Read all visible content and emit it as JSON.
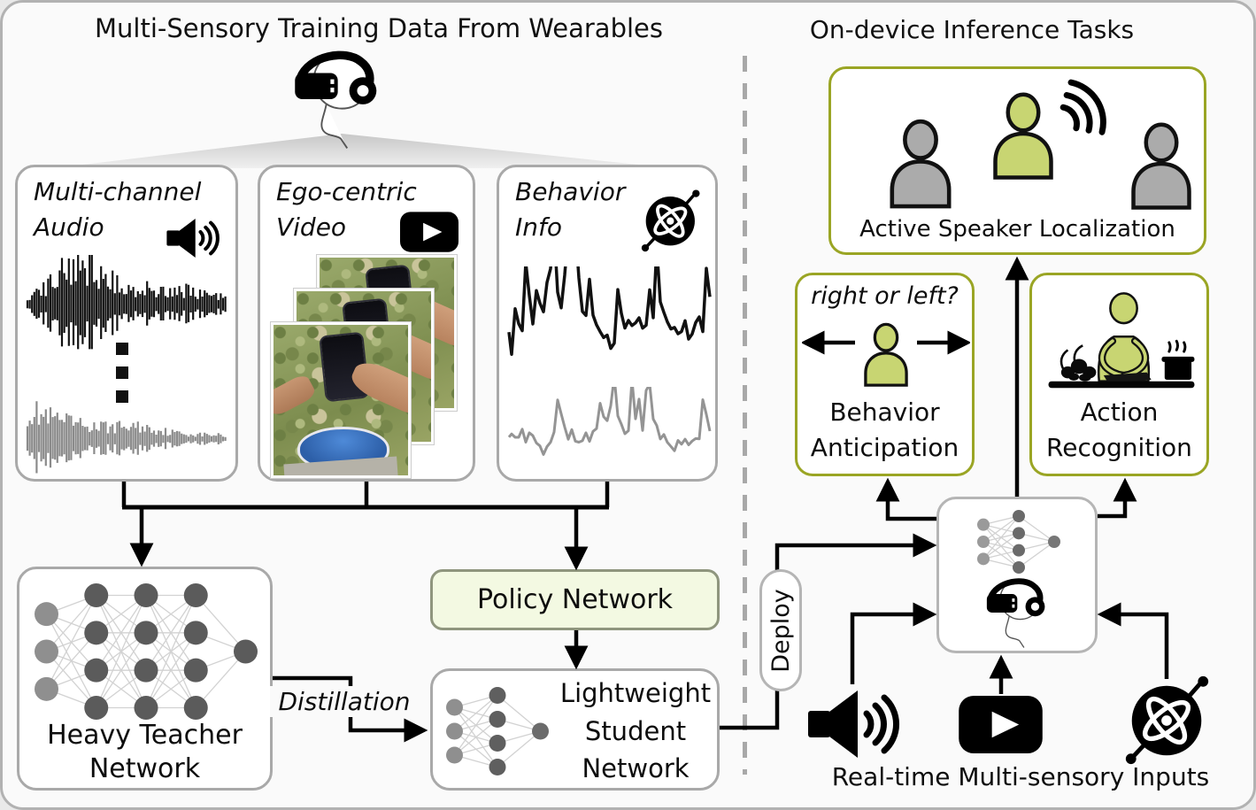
{
  "left_panel": {
    "title": "Multi-Sensory Training Data From Wearables",
    "audio_box": {
      "line1": "Multi-channel",
      "line2": "Audio"
    },
    "video_box": {
      "line1": "Ego-centric",
      "line2": "Video"
    },
    "behavior_box": {
      "line1": "Behavior",
      "line2": "Info"
    },
    "teacher_box": {
      "line1": "Heavy Teacher",
      "line2": "Network"
    },
    "policy_box": {
      "label": "Policy Network"
    },
    "distillation_label": "Distillation",
    "student_box": {
      "line1": "Lightweight",
      "line2": "Student",
      "line3": "Network"
    }
  },
  "deploy_label": "Deploy",
  "right_panel": {
    "title": "On-device Inference Tasks",
    "asl_box": {
      "label": "Active Speaker Localization"
    },
    "behavior_anticipation_box": {
      "question": "right or left?",
      "line1": "Behavior",
      "line2": "Anticipation"
    },
    "action_recognition_box": {
      "line1": "Action",
      "line2": "Recognition"
    },
    "inputs_label": "Real-time Multi-sensory Inputs"
  },
  "icons": [
    "vr-headset-icon",
    "speaker-icon",
    "play-icon",
    "gyroscope-icon",
    "person-icon",
    "sound-waves-icon",
    "cooking-icon",
    "neural-network-icon",
    "waveform-graphic",
    "signal-graphic",
    "ellipsis-icon"
  ],
  "colors": {
    "accent_green": "#c8d572",
    "olive_border": "#9aa524",
    "policy_fill": "#f3f9e2",
    "gray_person": "#ababab",
    "box_border": "#a9a9a9"
  }
}
